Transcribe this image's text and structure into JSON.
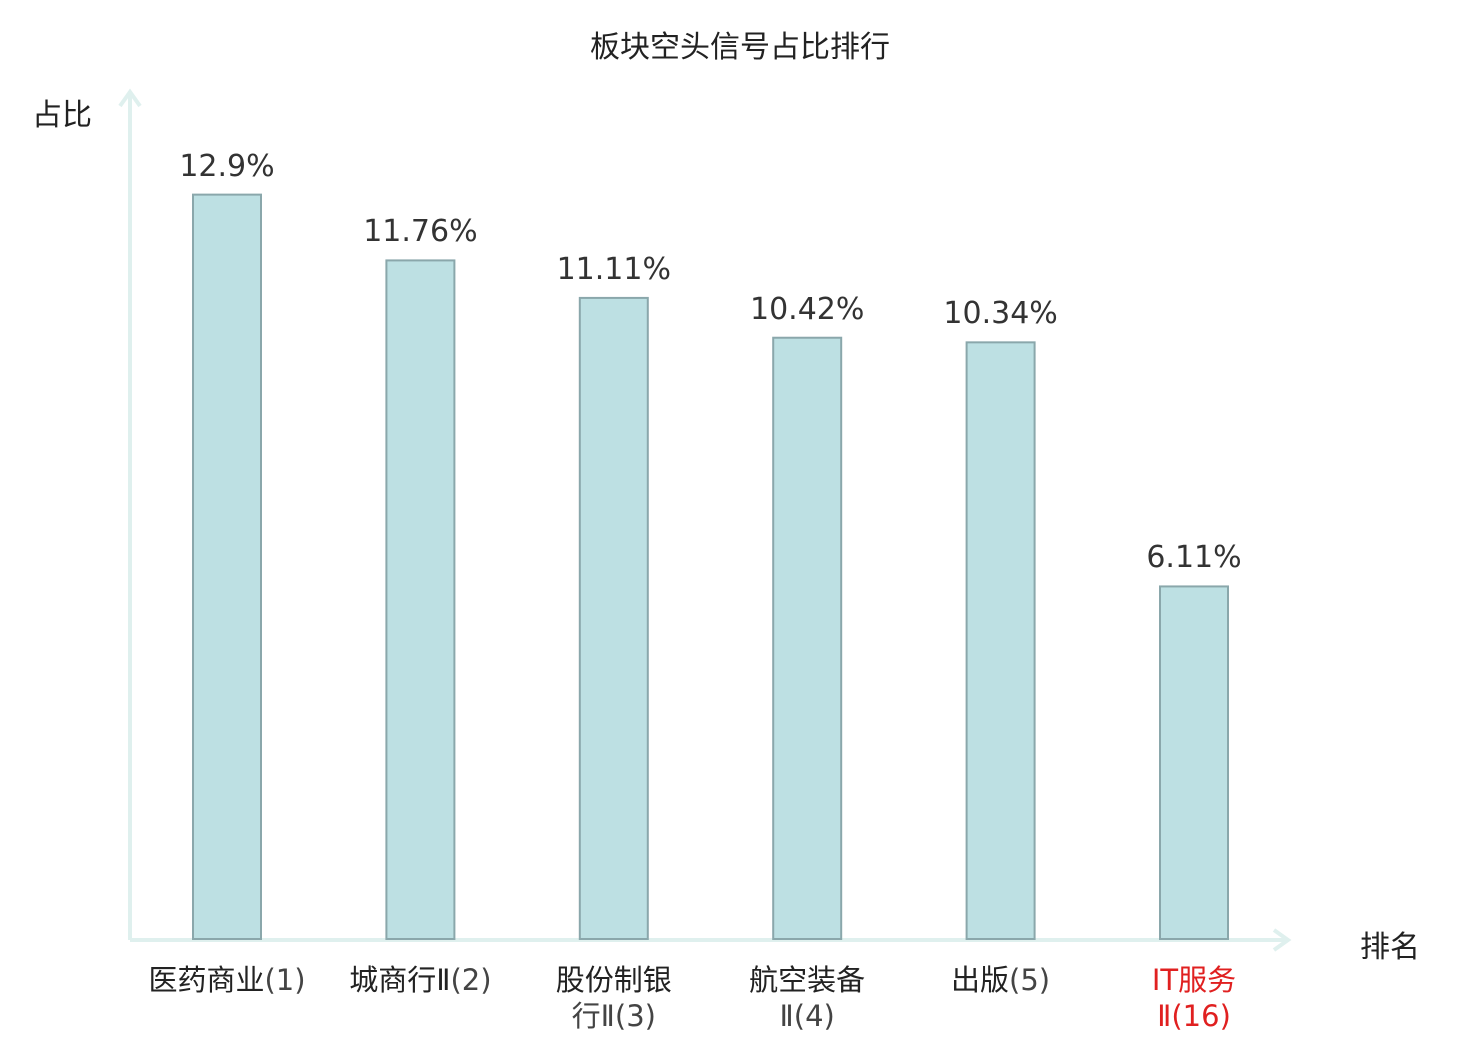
{
  "chart_data": {
    "type": "bar",
    "title": "板块空头信号占比排行",
    "ylabel": "占比",
    "xlabel": "排名",
    "categories": [
      {
        "line1": "医药商业",
        "line2": "(1)",
        "wrap": false
      },
      {
        "line1": "城商行Ⅱ",
        "line2": "(2)",
        "wrap": false
      },
      {
        "line1": "股份制银",
        "line2": "行Ⅱ(3)",
        "wrap": true
      },
      {
        "line1": "航空装备",
        "line2": "Ⅱ(4)",
        "wrap": true
      },
      {
        "line1": "出版",
        "line2": "(5)",
        "wrap": false
      },
      {
        "line1": "IT服务",
        "line2": "Ⅱ(16)",
        "wrap": true,
        "highlight": true
      }
    ],
    "values": [
      12.9,
      11.76,
      11.11,
      10.42,
      10.34,
      6.11
    ],
    "value_labels": [
      "12.9%",
      "11.76%",
      "11.11%",
      "10.42%",
      "10.34%",
      "6.11%"
    ],
    "ylim": [
      0,
      13.5
    ],
    "grid": false,
    "colors": {
      "bar_fill": "#bde0e3",
      "bar_stroke": "#8aa7ab",
      "axis": "#dff0ee",
      "highlight_text": "#e02020"
    }
  }
}
